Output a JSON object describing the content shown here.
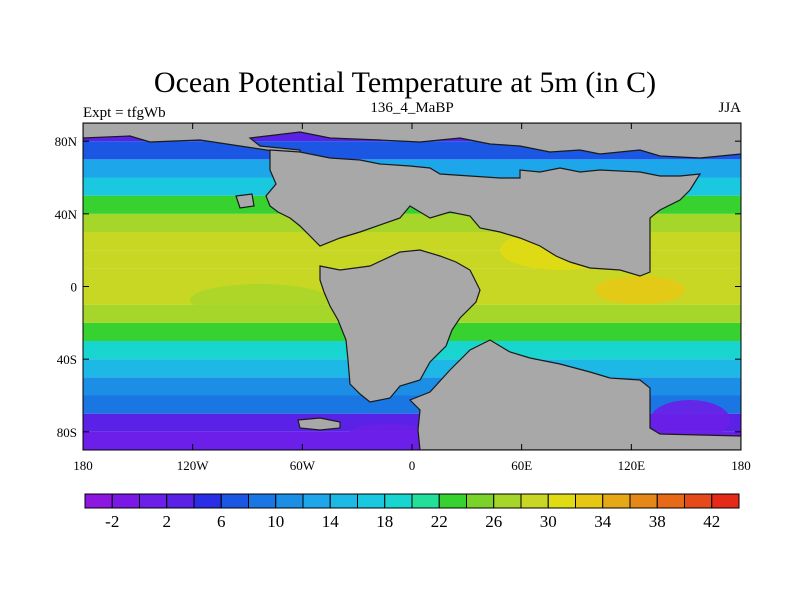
{
  "chart_data": {
    "type": "heatmap",
    "title": "Ocean Potential Temperature at 5m (in C)",
    "left_label": "Expt = tfgWb",
    "center_label": "136_4_MaBP",
    "right_label": "JJA",
    "xlim": [
      -180,
      180
    ],
    "ylim": [
      -90,
      90
    ],
    "x_ticks": [
      {
        "value": -180,
        "label": "180"
      },
      {
        "value": -120,
        "label": "120W"
      },
      {
        "value": -60,
        "label": "60W"
      },
      {
        "value": 0,
        "label": "0"
      },
      {
        "value": 60,
        "label": "60E"
      },
      {
        "value": 120,
        "label": "120E"
      },
      {
        "value": 180,
        "label": "180"
      }
    ],
    "y_ticks": [
      {
        "value": 80,
        "label": "80N"
      },
      {
        "value": 40,
        "label": "40N"
      },
      {
        "value": 0,
        "label": "0"
      },
      {
        "value": -40,
        "label": "40S"
      },
      {
        "value": -80,
        "label": "80S"
      }
    ],
    "land_color": "#a8a8a8",
    "colorbar": {
      "levels": [
        -4,
        -2,
        0,
        2,
        4,
        6,
        8,
        10,
        12,
        14,
        16,
        18,
        20,
        22,
        24,
        26,
        28,
        30,
        32,
        34,
        36,
        38,
        40,
        42,
        44
      ],
      "labels": [
        "-2",
        "2",
        "6",
        "10",
        "14",
        "18",
        "22",
        "26",
        "30",
        "34",
        "38",
        "42"
      ],
      "colors": [
        "#8c17e0",
        "#7a18e6",
        "#6b1fe8",
        "#5a22e6",
        "#2a2ee6",
        "#1c57e3",
        "#1a76e3",
        "#1c8ee6",
        "#1da6ea",
        "#1db8e6",
        "#1ac8e0",
        "#18d6cf",
        "#22e09a",
        "#38d230",
        "#7ad22a",
        "#a6d62a",
        "#c8d624",
        "#e0dc14",
        "#e6c814",
        "#e6a814",
        "#e68818",
        "#e66a18",
        "#e64a1a",
        "#e62a1a"
      ]
    },
    "zonal_mean_sst_ocean": {
      "latitudes": [
        -85,
        -75,
        -65,
        -55,
        -45,
        -35,
        -25,
        -15,
        -5,
        5,
        15,
        25,
        35,
        45,
        55,
        65,
        75,
        85
      ],
      "values": [
        0,
        3,
        8,
        11,
        14,
        18,
        22,
        26,
        28,
        29,
        29,
        28,
        26,
        22,
        17,
        12,
        7,
        2
      ]
    }
  }
}
